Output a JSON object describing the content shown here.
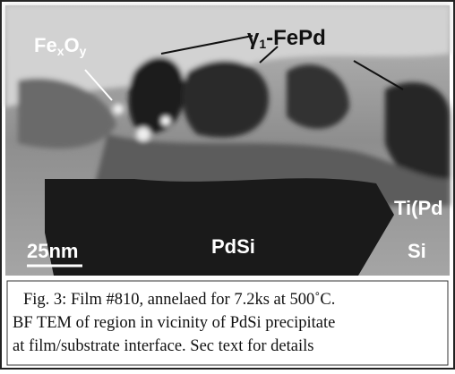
{
  "figure": {
    "labels": {
      "fexoy": [
        "Fe",
        "x",
        "O",
        "y"
      ],
      "gamma_fepd": [
        "γ",
        "1",
        "-FePd"
      ],
      "tipd": "Ti(Pd",
      "scale": "25nm",
      "pdsi": "PdSi",
      "si": "Si"
    },
    "caption": [
      "Fig. 3: Film #810, annelaed for 7.2ks at 500˚C.",
      "BF TEM of region in vicinity of PdSi  precipitate",
      "at film/substrate interface. Sec text for details"
    ]
  }
}
